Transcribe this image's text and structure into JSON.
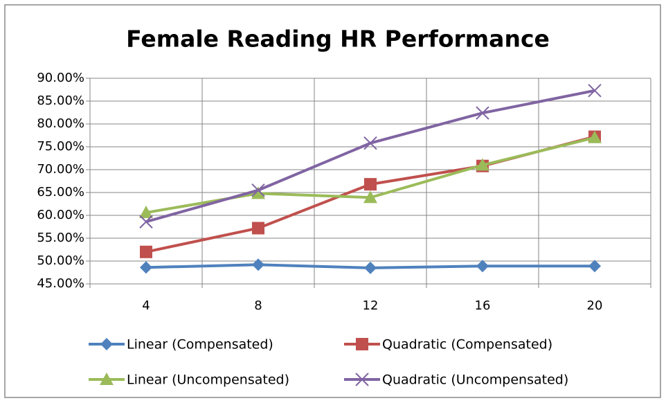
{
  "chart_data": {
    "type": "line",
    "title": "Female Reading  HR Performance",
    "categories": [
      "4",
      "8",
      "12",
      "16",
      "20"
    ],
    "series": [
      {
        "name": "Linear (Compensated)",
        "color": "#4f81bd",
        "marker": "diamond",
        "values": [
          48.6,
          49.2,
          48.5,
          48.9,
          48.9
        ]
      },
      {
        "name": "Quadratic (Compensated)",
        "color": "#c0504d",
        "marker": "square",
        "values": [
          52.0,
          57.2,
          66.8,
          70.8,
          77.2
        ]
      },
      {
        "name": "Linear (Uncompensated)",
        "color": "#9bbb59",
        "marker": "triangle",
        "values": [
          60.6,
          64.8,
          63.9,
          71.0,
          77.0
        ]
      },
      {
        "name": "Quadratic (Uncompensated)",
        "color": "#8064a2",
        "marker": "x",
        "values": [
          58.6,
          65.5,
          75.8,
          82.4,
          87.3
        ]
      }
    ],
    "ylim": [
      45,
      90
    ],
    "yticks": [
      {
        "value": 45,
        "label": "45.00%"
      },
      {
        "value": 50,
        "label": "50.00%"
      },
      {
        "value": 55,
        "label": "55.00%"
      },
      {
        "value": 60,
        "label": "60.00%"
      },
      {
        "value": 65,
        "label": "65.00%"
      },
      {
        "value": 70,
        "label": "70.00%"
      },
      {
        "value": 75,
        "label": "75.00%"
      },
      {
        "value": 80,
        "label": "80.00%"
      },
      {
        "value": 85,
        "label": "85.00%"
      },
      {
        "value": 90,
        "label": "90.00%"
      }
    ],
    "grid": true,
    "legend": "bottom"
  }
}
